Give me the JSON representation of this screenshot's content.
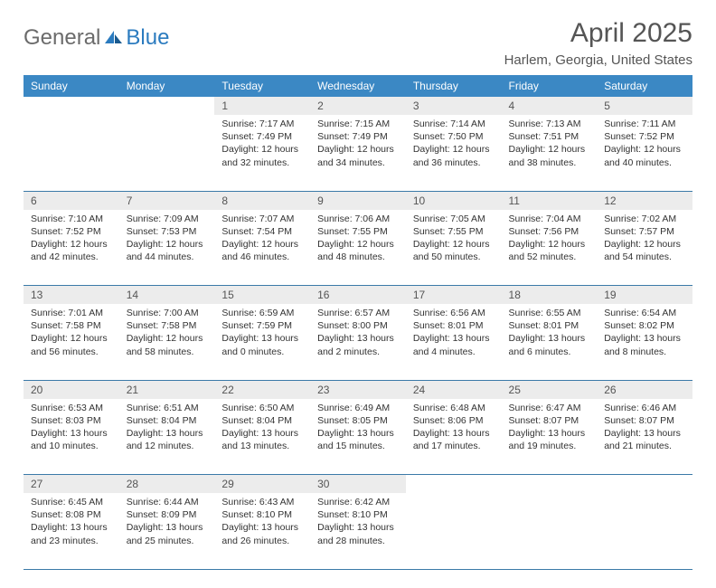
{
  "logo": {
    "general": "General",
    "blue": "Blue"
  },
  "title": "April 2025",
  "location": "Harlem, Georgia, United States",
  "header_bg": "#3b88c4",
  "header_fg": "#ffffff",
  "daynum_bg": "#ececec",
  "border_color": "#3b7aa8",
  "days": [
    "Sunday",
    "Monday",
    "Tuesday",
    "Wednesday",
    "Thursday",
    "Friday",
    "Saturday"
  ],
  "weeks": [
    [
      null,
      null,
      {
        "n": "1",
        "sunrise": "7:17 AM",
        "sunset": "7:49 PM",
        "dl": "12 hours and 32 minutes."
      },
      {
        "n": "2",
        "sunrise": "7:15 AM",
        "sunset": "7:49 PM",
        "dl": "12 hours and 34 minutes."
      },
      {
        "n": "3",
        "sunrise": "7:14 AM",
        "sunset": "7:50 PM",
        "dl": "12 hours and 36 minutes."
      },
      {
        "n": "4",
        "sunrise": "7:13 AM",
        "sunset": "7:51 PM",
        "dl": "12 hours and 38 minutes."
      },
      {
        "n": "5",
        "sunrise": "7:11 AM",
        "sunset": "7:52 PM",
        "dl": "12 hours and 40 minutes."
      }
    ],
    [
      {
        "n": "6",
        "sunrise": "7:10 AM",
        "sunset": "7:52 PM",
        "dl": "12 hours and 42 minutes."
      },
      {
        "n": "7",
        "sunrise": "7:09 AM",
        "sunset": "7:53 PM",
        "dl": "12 hours and 44 minutes."
      },
      {
        "n": "8",
        "sunrise": "7:07 AM",
        "sunset": "7:54 PM",
        "dl": "12 hours and 46 minutes."
      },
      {
        "n": "9",
        "sunrise": "7:06 AM",
        "sunset": "7:55 PM",
        "dl": "12 hours and 48 minutes."
      },
      {
        "n": "10",
        "sunrise": "7:05 AM",
        "sunset": "7:55 PM",
        "dl": "12 hours and 50 minutes."
      },
      {
        "n": "11",
        "sunrise": "7:04 AM",
        "sunset": "7:56 PM",
        "dl": "12 hours and 52 minutes."
      },
      {
        "n": "12",
        "sunrise": "7:02 AM",
        "sunset": "7:57 PM",
        "dl": "12 hours and 54 minutes."
      }
    ],
    [
      {
        "n": "13",
        "sunrise": "7:01 AM",
        "sunset": "7:58 PM",
        "dl": "12 hours and 56 minutes."
      },
      {
        "n": "14",
        "sunrise": "7:00 AM",
        "sunset": "7:58 PM",
        "dl": "12 hours and 58 minutes."
      },
      {
        "n": "15",
        "sunrise": "6:59 AM",
        "sunset": "7:59 PM",
        "dl": "13 hours and 0 minutes."
      },
      {
        "n": "16",
        "sunrise": "6:57 AM",
        "sunset": "8:00 PM",
        "dl": "13 hours and 2 minutes."
      },
      {
        "n": "17",
        "sunrise": "6:56 AM",
        "sunset": "8:01 PM",
        "dl": "13 hours and 4 minutes."
      },
      {
        "n": "18",
        "sunrise": "6:55 AM",
        "sunset": "8:01 PM",
        "dl": "13 hours and 6 minutes."
      },
      {
        "n": "19",
        "sunrise": "6:54 AM",
        "sunset": "8:02 PM",
        "dl": "13 hours and 8 minutes."
      }
    ],
    [
      {
        "n": "20",
        "sunrise": "6:53 AM",
        "sunset": "8:03 PM",
        "dl": "13 hours and 10 minutes."
      },
      {
        "n": "21",
        "sunrise": "6:51 AM",
        "sunset": "8:04 PM",
        "dl": "13 hours and 12 minutes."
      },
      {
        "n": "22",
        "sunrise": "6:50 AM",
        "sunset": "8:04 PM",
        "dl": "13 hours and 13 minutes."
      },
      {
        "n": "23",
        "sunrise": "6:49 AM",
        "sunset": "8:05 PM",
        "dl": "13 hours and 15 minutes."
      },
      {
        "n": "24",
        "sunrise": "6:48 AM",
        "sunset": "8:06 PM",
        "dl": "13 hours and 17 minutes."
      },
      {
        "n": "25",
        "sunrise": "6:47 AM",
        "sunset": "8:07 PM",
        "dl": "13 hours and 19 minutes."
      },
      {
        "n": "26",
        "sunrise": "6:46 AM",
        "sunset": "8:07 PM",
        "dl": "13 hours and 21 minutes."
      }
    ],
    [
      {
        "n": "27",
        "sunrise": "6:45 AM",
        "sunset": "8:08 PM",
        "dl": "13 hours and 23 minutes."
      },
      {
        "n": "28",
        "sunrise": "6:44 AM",
        "sunset": "8:09 PM",
        "dl": "13 hours and 25 minutes."
      },
      {
        "n": "29",
        "sunrise": "6:43 AM",
        "sunset": "8:10 PM",
        "dl": "13 hours and 26 minutes."
      },
      {
        "n": "30",
        "sunrise": "6:42 AM",
        "sunset": "8:10 PM",
        "dl": "13 hours and 28 minutes."
      },
      null,
      null,
      null
    ]
  ],
  "labels": {
    "sunrise": "Sunrise:",
    "sunset": "Sunset:",
    "daylight": "Daylight:"
  }
}
